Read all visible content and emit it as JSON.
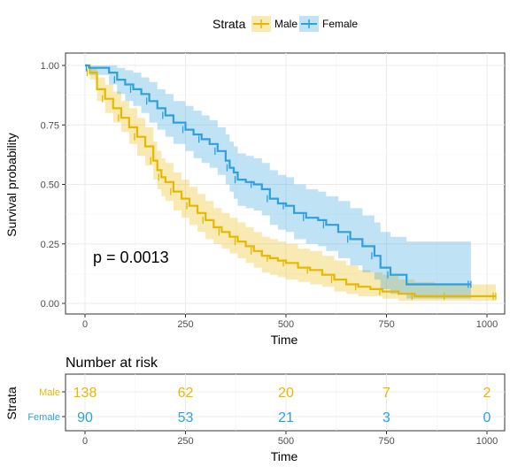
{
  "legend": {
    "title": "Strata",
    "items": [
      {
        "label": "Male",
        "color": "#E7B800"
      },
      {
        "label": "Female",
        "color": "#2E9FDF"
      }
    ]
  },
  "pvalue_text": "p = 0.0013",
  "risk_table": {
    "title": "Number at risk",
    "ylabel": "Strata",
    "xlabel": "Time",
    "times": [
      0,
      250,
      500,
      750,
      1000
    ],
    "strata": [
      {
        "label": "Male",
        "color": "#E7B800",
        "counts": [
          138,
          62,
          20,
          7,
          2
        ]
      },
      {
        "label": "Female",
        "color": "#2E9FDF",
        "counts": [
          90,
          53,
          21,
          3,
          0
        ]
      }
    ]
  },
  "chart_data": {
    "type": "line",
    "xlabel": "Time",
    "ylabel": "Survival probability",
    "xlim": [
      0,
      1022
    ],
    "ylim": [
      0,
      1.0
    ],
    "x_ticks": [
      0,
      250,
      500,
      750,
      1000
    ],
    "y_ticks": [
      "0.00",
      "0.25",
      "0.50",
      "0.75",
      "1.00"
    ],
    "y_tick_values": [
      0,
      0.25,
      0.5,
      0.75,
      1.0
    ],
    "grid": true,
    "series": [
      {
        "name": "Male",
        "color": "#E7B800",
        "x": [
          0,
          12,
          30,
          50,
          70,
          90,
          110,
          130,
          150,
          170,
          180,
          190,
          200,
          220,
          240,
          260,
          280,
          300,
          320,
          340,
          360,
          380,
          400,
          420,
          440,
          460,
          480,
          500,
          530,
          560,
          590,
          620,
          650,
          680,
          710,
          740,
          780,
          820,
          870,
          900,
          965,
          1022
        ],
        "y": [
          1.0,
          0.97,
          0.9,
          0.86,
          0.82,
          0.78,
          0.74,
          0.7,
          0.66,
          0.6,
          0.56,
          0.53,
          0.51,
          0.47,
          0.44,
          0.41,
          0.38,
          0.35,
          0.32,
          0.3,
          0.28,
          0.26,
          0.24,
          0.22,
          0.2,
          0.19,
          0.18,
          0.17,
          0.15,
          0.14,
          0.12,
          0.1,
          0.08,
          0.07,
          0.06,
          0.05,
          0.04,
          0.03,
          0.03,
          0.03,
          0.03,
          0.03
        ],
        "ci_upper": [
          1.0,
          0.99,
          0.95,
          0.92,
          0.89,
          0.85,
          0.82,
          0.78,
          0.74,
          0.68,
          0.64,
          0.61,
          0.59,
          0.55,
          0.52,
          0.49,
          0.46,
          0.43,
          0.4,
          0.38,
          0.36,
          0.34,
          0.32,
          0.3,
          0.28,
          0.27,
          0.26,
          0.25,
          0.23,
          0.22,
          0.2,
          0.18,
          0.16,
          0.14,
          0.13,
          0.12,
          0.1,
          0.09,
          0.08,
          0.08,
          0.08,
          0.08
        ],
        "ci_lower": [
          1.0,
          0.94,
          0.85,
          0.8,
          0.76,
          0.72,
          0.67,
          0.62,
          0.58,
          0.52,
          0.48,
          0.45,
          0.43,
          0.39,
          0.36,
          0.33,
          0.3,
          0.27,
          0.25,
          0.23,
          0.21,
          0.19,
          0.17,
          0.15,
          0.13,
          0.12,
          0.11,
          0.1,
          0.09,
          0.08,
          0.07,
          0.05,
          0.04,
          0.03,
          0.03,
          0.02,
          0.01,
          0.01,
          0.01,
          0.01,
          0.01,
          0.01
        ]
      },
      {
        "name": "Female",
        "color": "#2E9FDF",
        "x": [
          0,
          10,
          60,
          80,
          100,
          120,
          140,
          160,
          180,
          200,
          220,
          250,
          270,
          290,
          310,
          330,
          350,
          360,
          370,
          380,
          400,
          420,
          440,
          460,
          480,
          500,
          520,
          550,
          580,
          600,
          630,
          660,
          690,
          720,
          735,
          760,
          800,
          960
        ],
        "y": [
          1.0,
          0.99,
          0.97,
          0.94,
          0.92,
          0.9,
          0.88,
          0.85,
          0.82,
          0.79,
          0.76,
          0.73,
          0.71,
          0.69,
          0.67,
          0.64,
          0.6,
          0.57,
          0.55,
          0.52,
          0.51,
          0.5,
          0.48,
          0.44,
          0.42,
          0.41,
          0.38,
          0.36,
          0.35,
          0.33,
          0.3,
          0.27,
          0.24,
          0.2,
          0.15,
          0.12,
          0.08,
          0.08
        ],
        "ci_upper": [
          1.0,
          1.0,
          1.0,
          0.99,
          0.98,
          0.97,
          0.95,
          0.93,
          0.9,
          0.88,
          0.85,
          0.83,
          0.81,
          0.79,
          0.77,
          0.74,
          0.71,
          0.68,
          0.66,
          0.63,
          0.62,
          0.61,
          0.59,
          0.56,
          0.54,
          0.53,
          0.5,
          0.48,
          0.47,
          0.45,
          0.43,
          0.4,
          0.37,
          0.34,
          0.3,
          0.28,
          0.26,
          0.26
        ],
        "ci_lower": [
          1.0,
          0.96,
          0.92,
          0.88,
          0.85,
          0.83,
          0.8,
          0.76,
          0.73,
          0.7,
          0.67,
          0.64,
          0.61,
          0.59,
          0.57,
          0.54,
          0.5,
          0.47,
          0.44,
          0.41,
          0.4,
          0.39,
          0.37,
          0.33,
          0.31,
          0.3,
          0.27,
          0.25,
          0.24,
          0.22,
          0.19,
          0.16,
          0.13,
          0.1,
          0.06,
          0.04,
          0.02,
          0.02
        ]
      }
    ]
  }
}
